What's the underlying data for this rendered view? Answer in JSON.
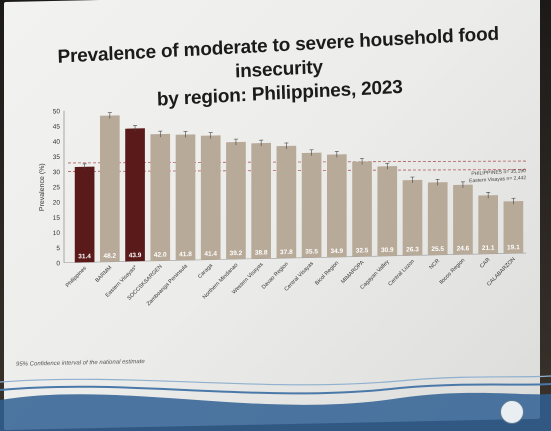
{
  "slide": {
    "title_line1": "Prevalence of moderate to severe household food insecurity",
    "title_line2": "by region: Philippines, 2023",
    "ci_note": "95% Confidence interval of the national estimate",
    "est_note_line1": "PHILIPPINES n= 35,190",
    "est_note_line2": "Eastern Visayas n= 2,442"
  },
  "colors": {
    "highlight_bar": "#5a1a1a",
    "regular_bar": "#b8aa98",
    "ci_line": "#a33a3a",
    "wave_blue": "#2f5f93"
  },
  "chart_data": {
    "type": "bar",
    "title": "Prevalence of moderate to severe household food insecurity by region: Philippines, 2023",
    "ylabel": "Prevalence (%)",
    "ylim": [
      0,
      50
    ],
    "yticks": [
      0,
      5,
      10,
      15,
      20,
      25,
      30,
      35,
      40,
      45,
      50
    ],
    "categories": [
      "Philippines",
      "BARMM",
      "Eastern Visayas*",
      "SOCCSKSARGEN",
      "Zamboanga Peninsula",
      "Caraga",
      "Northern Mindanao",
      "Western Visayas",
      "Davao Region",
      "Central Visayas",
      "Bicol Region",
      "MIMAROPA",
      "Cagayan Valley",
      "Central Luzon",
      "NCR",
      "Ilocos Region",
      "CAR",
      "CALABARZON"
    ],
    "values": [
      31.4,
      48.2,
      43.9,
      42.0,
      41.8,
      41.4,
      39.2,
      38.8,
      37.8,
      35.5,
      34.9,
      32.5,
      30.9,
      26.3,
      25.5,
      24.6,
      21.1,
      19.1
    ],
    "highlighted": [
      "Philippines",
      "Eastern Visayas*"
    ],
    "ci_band": [
      30.0,
      32.8
    ],
    "grid": false,
    "legend": "bottom-left"
  }
}
